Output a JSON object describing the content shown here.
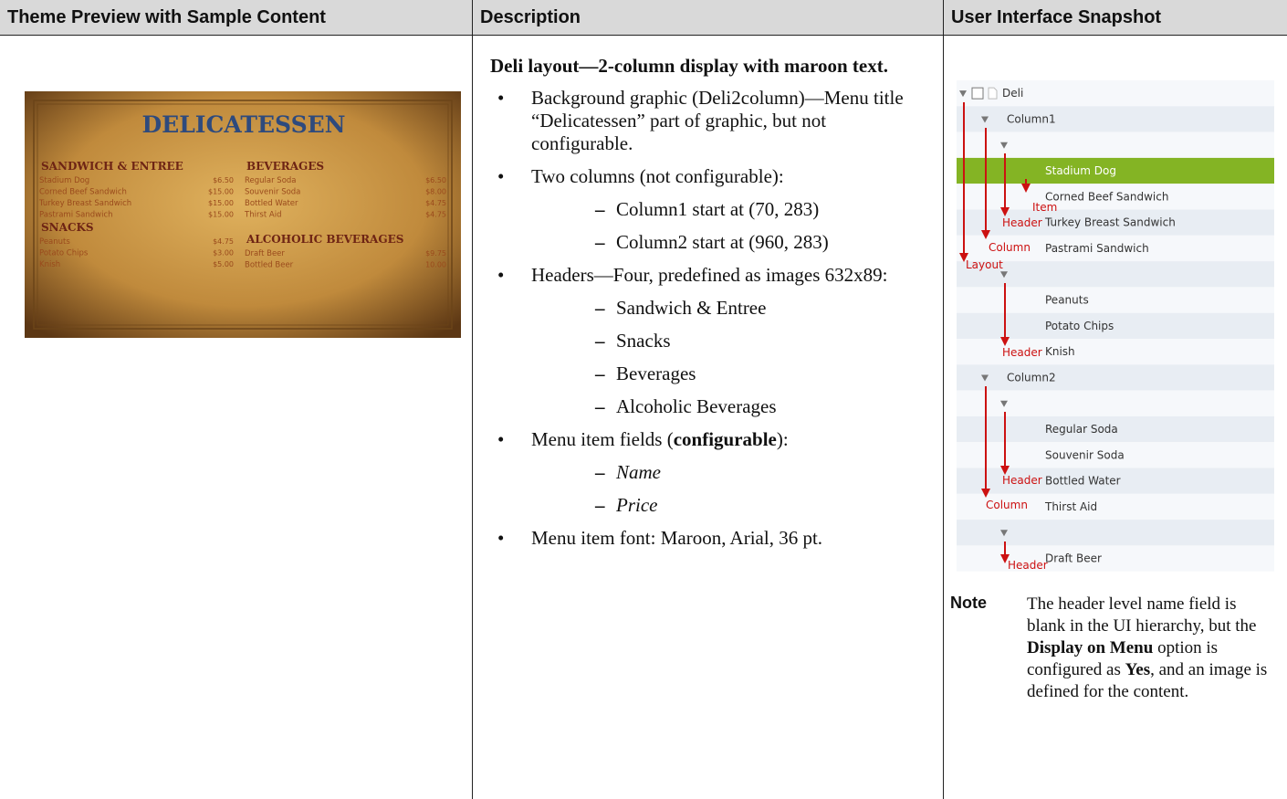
{
  "table": {
    "headers": [
      "Theme Preview with Sample Content",
      "Description",
      "User Interface Snapshot"
    ],
    "preview": {
      "title": "DELICATESSEN",
      "columns": [
        [
          {
            "header": "SANDWICH & ENTREE",
            "items": [
              [
                "Stadium Dog",
                "$6.50"
              ],
              [
                "Corned Beef Sandwich",
                "$15.00"
              ],
              [
                "Turkey Breast Sandwich",
                "$15.00"
              ],
              [
                "Pastrami Sandwich",
                "$15.00"
              ]
            ]
          },
          {
            "header": "SNACKS",
            "items": [
              [
                "Peanuts",
                "$4.75"
              ],
              [
                "Potato Chips",
                "$3.00"
              ],
              [
                "Knish",
                "$5.00"
              ]
            ]
          }
        ],
        [
          {
            "header": "BEVERAGES",
            "items": [
              [
                "Regular Soda",
                "$6.50"
              ],
              [
                "Souvenir Soda",
                "$8.00"
              ],
              [
                "Bottled Water",
                "$4.75"
              ],
              [
                "Thirst Aid",
                "$4.75"
              ]
            ]
          },
          {
            "header": "ALCOHOLIC BEVERAGES",
            "items": [
              [
                "Draft Beer",
                "$9.75"
              ],
              [
                "Bottled Beer",
                "10.00"
              ]
            ]
          }
        ]
      ]
    },
    "description": {
      "heading": "Deli layout—2-column display with maroon text.",
      "bullets": [
        {
          "text": [
            "Background graphic (Deli2column)—Menu title “Delicatessen” part of graphic, but not configurable."
          ]
        },
        {
          "text": [
            "Two columns (not configurable):"
          ],
          "subs": [
            "Column1 start at (70, 283)",
            "Column2 start at (960, 283)"
          ]
        },
        {
          "text": [
            "Headers—Four, predefined as images 632x89:"
          ],
          "subs": [
            "Sandwich & Entree",
            "Snacks",
            "Beverages",
            "Alcoholic Beverages"
          ]
        },
        {
          "text": [
            "Menu item fields (",
            "configurable",
            "):"
          ],
          "subs": [
            "Name",
            "Price"
          ]
        },
        {
          "text": [
            "Menu item font: Maroon, Arial, 36 pt."
          ]
        }
      ]
    },
    "snapshot": {
      "rows": [
        "Deli",
        "Column1",
        null,
        "Stadium Dog",
        "Corned Beef Sandwich",
        "Turkey Breast Sandwich",
        "Pastrami Sandwich",
        null,
        "Peanuts",
        "Potato Chips",
        "Knish",
        "Column2",
        null,
        "Regular Soda",
        "Souvenir Soda",
        "Bottled Water",
        "Thirst Aid",
        null,
        "Draft Beer"
      ],
      "annotations": [
        "Item",
        "Header",
        "Column",
        "Layout",
        "Header",
        "Header",
        "Column",
        "Header"
      ]
    },
    "note": {
      "label": "Note",
      "text": [
        "The header level name field is blank in the UI hierarchy, but the ",
        "Display on Menu",
        " option is configured as ",
        "Yes",
        ", and an image is defined for the content."
      ]
    }
  }
}
